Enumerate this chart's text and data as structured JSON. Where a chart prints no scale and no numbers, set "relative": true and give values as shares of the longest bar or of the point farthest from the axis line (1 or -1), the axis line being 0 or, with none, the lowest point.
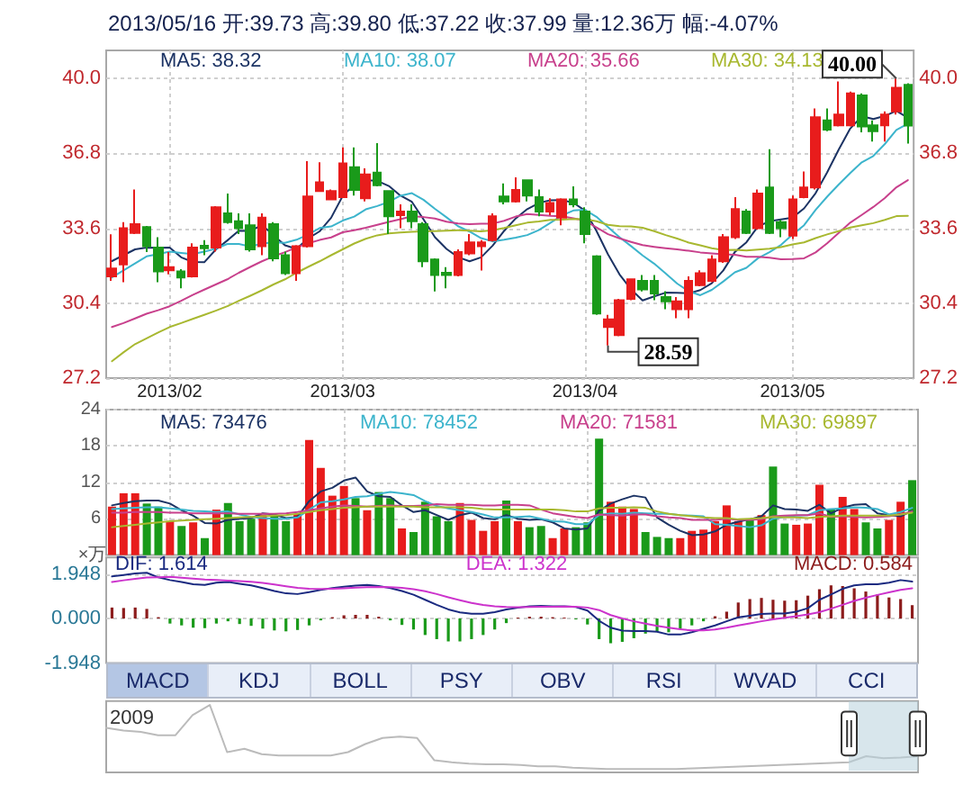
{
  "chart_data": [
    {
      "type": "candlestick",
      "title": "2013/05/16 开:39.73 高:39.80 低:37.22 收:37.99 量:12.36万 幅:-4.07%",
      "categories": [
        null,
        null,
        null,
        null,
        null,
        "2013/02",
        null,
        null,
        null,
        null,
        null,
        null,
        null,
        null,
        null,
        null,
        null,
        null,
        null,
        null,
        "2013/03",
        null,
        null,
        null,
        null,
        null,
        null,
        null,
        null,
        null,
        null,
        null,
        null,
        null,
        null,
        null,
        null,
        null,
        null,
        null,
        null,
        "2013/04",
        null,
        null,
        null,
        null,
        null,
        null,
        null,
        null,
        null,
        null,
        null,
        null,
        null,
        null,
        null,
        null,
        null,
        "2013/05",
        null,
        null,
        null,
        null,
        null,
        null,
        null,
        null,
        null,
        null
      ],
      "ohlc": [
        [
          31.55,
          33.34,
          31.35,
          31.88
        ],
        [
          32.06,
          33.86,
          31.3,
          33.6
        ],
        [
          33.4,
          35.26,
          33.35,
          33.78
        ],
        [
          33.65,
          33.7,
          32.58,
          32.83
        ],
        [
          32.78,
          33.22,
          31.3,
          31.76
        ],
        [
          31.81,
          32.58,
          31.63,
          31.94
        ],
        [
          31.76,
          31.85,
          31.04,
          31.5
        ],
        [
          31.55,
          32.96,
          31.5,
          32.78
        ],
        [
          32.85,
          33.09,
          32.45,
          32.75
        ],
        [
          32.78,
          34.55,
          32.6,
          34.5
        ],
        [
          34.24,
          35.08,
          33.8,
          33.86
        ],
        [
          33.9,
          34.24,
          33.35,
          33.6
        ],
        [
          33.73,
          34.24,
          32.6,
          32.7
        ],
        [
          32.83,
          34.24,
          32.45,
          34.06
        ],
        [
          33.78,
          33.86,
          32.19,
          32.32
        ],
        [
          32.45,
          32.6,
          31.6,
          31.68
        ],
        [
          31.68,
          32.88,
          31.35,
          32.83
        ],
        [
          32.83,
          36.47,
          32.78,
          34.96
        ],
        [
          35.19,
          36.42,
          35.15,
          35.57
        ],
        [
          34.83,
          35.26,
          34.8,
          35.19
        ],
        [
          34.93,
          37.06,
          34.9,
          36.37
        ],
        [
          36.21,
          37.06,
          35.0,
          35.24
        ],
        [
          34.88,
          36.16,
          34.75,
          35.9
        ],
        [
          35.98,
          37.24,
          35.39,
          35.44
        ],
        [
          35.19,
          35.2,
          33.35,
          34.11
        ],
        [
          34.16,
          34.62,
          33.6,
          34.32
        ],
        [
          34.32,
          34.62,
          33.6,
          33.9
        ],
        [
          33.78,
          33.86,
          31.94,
          32.19
        ],
        [
          32.27,
          32.32,
          30.9,
          31.6
        ],
        [
          31.7,
          31.94,
          31.04,
          31.6
        ],
        [
          31.6,
          32.7,
          31.55,
          32.58
        ],
        [
          32.53,
          33.35,
          32.45,
          33.0
        ],
        [
          32.83,
          33.09,
          31.8,
          33.0
        ],
        [
          33.09,
          34.24,
          33.04,
          34.11
        ],
        [
          34.96,
          35.52,
          34.62,
          34.75
        ],
        [
          34.75,
          35.78,
          34.7,
          35.24
        ],
        [
          35.65,
          35.65,
          34.75,
          35.0
        ],
        [
          34.93,
          35.26,
          34.11,
          34.32
        ],
        [
          34.32,
          34.88,
          34.16,
          34.68
        ],
        [
          34.06,
          34.88,
          33.73,
          34.83
        ],
        [
          34.83,
          35.39,
          34.5,
          34.62
        ],
        [
          34.32,
          34.5,
          32.96,
          33.35
        ],
        [
          32.4,
          32.45,
          29.9,
          29.96
        ],
        [
          29.38,
          29.9,
          28.59,
          29.71
        ],
        [
          29.04,
          30.58,
          28.99,
          30.53
        ],
        [
          30.58,
          31.42,
          30.53,
          31.42
        ],
        [
          31.35,
          31.6,
          30.9,
          30.99
        ],
        [
          31.35,
          31.6,
          30.53,
          30.82
        ],
        [
          30.66,
          30.91,
          30.14,
          30.48
        ],
        [
          30.14,
          30.66,
          29.76,
          30.48
        ],
        [
          30.14,
          31.55,
          29.76,
          31.35
        ],
        [
          31.17,
          31.81,
          31.12,
          31.68
        ],
        [
          31.35,
          32.45,
          31.3,
          32.27
        ],
        [
          32.19,
          33.35,
          32.12,
          33.22
        ],
        [
          33.22,
          34.93,
          33.14,
          34.42
        ],
        [
          34.32,
          34.42,
          33.35,
          33.4
        ],
        [
          33.6,
          35.26,
          33.55,
          35.08
        ],
        [
          35.34,
          36.98,
          33.35,
          33.4
        ],
        [
          33.86,
          33.96,
          33.22,
          33.6
        ],
        [
          33.29,
          35.0,
          33.14,
          34.83
        ],
        [
          34.93,
          36.03,
          34.88,
          35.34
        ],
        [
          35.34,
          38.72,
          35.26,
          38.34
        ],
        [
          38.21,
          38.72,
          37.75,
          37.82
        ],
        [
          38.0,
          39.87,
          37.95,
          38.46
        ],
        [
          38.0,
          39.44,
          37.95,
          39.36
        ],
        [
          39.28,
          39.36,
          37.7,
          37.95
        ],
        [
          38.0,
          38.21,
          37.31,
          37.75
        ],
        [
          38.0,
          38.59,
          37.31,
          38.46
        ],
        [
          38.59,
          40.0,
          38.46,
          39.6
        ],
        [
          39.73,
          39.8,
          37.22,
          37.99
        ]
      ],
      "colors": [
        "#e81c1c",
        "#e81c1c",
        "#e81c1c",
        "#1a9a1a",
        "#1a9a1a",
        "#e81c1c",
        "#1a9a1a",
        "#e81c1c",
        "#1a9a1a",
        "#e81c1c",
        "#1a9a1a",
        "#1a9a1a",
        "#1a9a1a",
        "#e81c1c",
        "#1a9a1a",
        "#1a9a1a",
        "#e81c1c",
        "#e81c1c",
        "#e81c1c",
        "#e81c1c",
        "#e81c1c",
        "#1a9a1a",
        "#e81c1c",
        "#1a9a1a",
        "#1a9a1a",
        "#e81c1c",
        "#1a9a1a",
        "#1a9a1a",
        "#1a9a1a",
        "#1a9a1a",
        "#e81c1c",
        "#e81c1c",
        "#e81c1c",
        "#e81c1c",
        "#1a9a1a",
        "#e81c1c",
        "#1a9a1a",
        "#1a9a1a",
        "#e81c1c",
        "#e81c1c",
        "#1a9a1a",
        "#1a9a1a",
        "#1a9a1a",
        "#e81c1c",
        "#e81c1c",
        "#e81c1c",
        "#1a9a1a",
        "#1a9a1a",
        "#1a9a1a",
        "#e81c1c",
        "#e81c1c",
        "#e81c1c",
        "#e81c1c",
        "#e81c1c",
        "#e81c1c",
        "#1a9a1a",
        "#e81c1c",
        "#1a9a1a",
        "#1a9a1a",
        "#e81c1c",
        "#e81c1c",
        "#e81c1c",
        "#1a9a1a",
        "#e81c1c",
        "#e81c1c",
        "#1a9a1a",
        "#1a9a1a",
        "#e81c1c",
        "#e81c1c",
        "#1a9a1a"
      ],
      "series": [
        {
          "type": "line",
          "name": "MA5: 38.32",
          "color": "#1c3364",
          "values": [
            32.2,
            32.45,
            32.7,
            32.78,
            32.77,
            32.78,
            32.36,
            32.16,
            32.15,
            32.69,
            33.08,
            33.5,
            33.48,
            33.74,
            33.31,
            32.87,
            32.72,
            33.17,
            33.47,
            34.05,
            34.98,
            35.47,
            35.65,
            35.63,
            35.41,
            35.0,
            34.73,
            33.99,
            33.22,
            32.72,
            32.37,
            32.19,
            32.36,
            32.86,
            33.49,
            34.02,
            34.42,
            34.68,
            34.8,
            34.81,
            34.69,
            34.36,
            33.49,
            32.49,
            31.63,
            30.99,
            30.52,
            30.69,
            30.85,
            30.84,
            30.82,
            30.96,
            31.25,
            31.8,
            32.59,
            33.0,
            33.68,
            33.9,
            33.98,
            34.06,
            34.45,
            35.1,
            35.99,
            36.96,
            37.86,
            38.39,
            38.27,
            38.4,
            38.62,
            38.32
          ]
        },
        {
          "type": "line",
          "name": "MA10: 38.07",
          "color": "#3cb4cc",
          "values": [
            31.5,
            31.8,
            32.1,
            32.4,
            32.5,
            32.6,
            32.55,
            32.5,
            32.6,
            32.73,
            32.93,
            32.93,
            32.82,
            32.95,
            33.0,
            32.98,
            33.11,
            33.33,
            33.61,
            33.68,
            33.93,
            34.1,
            34.41,
            34.55,
            34.73,
            34.99,
            35.1,
            34.82,
            34.43,
            34.07,
            33.69,
            33.46,
            33.18,
            33.04,
            33.11,
            33.2,
            33.31,
            33.52,
            33.83,
            34.15,
            34.36,
            34.39,
            34.09,
            33.65,
            33.22,
            32.84,
            32.44,
            32.09,
            31.67,
            31.24,
            30.91,
            30.74,
            30.97,
            31.33,
            31.72,
            31.91,
            32.32,
            32.58,
            32.89,
            33.33,
            33.73,
            34.39,
            34.95,
            35.47,
            35.96,
            36.42,
            36.69,
            37.2,
            37.8,
            38.07
          ]
        },
        {
          "type": "line",
          "name": "MA20: 35.66",
          "color": "#c8408c",
          "values": [
            29.38,
            29.55,
            29.75,
            29.95,
            30.1,
            30.27,
            30.5,
            30.75,
            30.98,
            31.2,
            31.42,
            31.7,
            31.95,
            32.19,
            32.4,
            32.58,
            32.78,
            32.96,
            33.1,
            33.21,
            33.43,
            33.52,
            33.62,
            33.75,
            33.87,
            33.99,
            34.11,
            34.08,
            34.02,
            33.88,
            33.81,
            33.78,
            33.8,
            33.8,
            33.92,
            34.1,
            34.21,
            34.17,
            34.13,
            34.11,
            34.03,
            33.93,
            33.64,
            33.35,
            33.17,
            33.02,
            32.88,
            32.81,
            32.75,
            32.7,
            32.64,
            32.57,
            32.53,
            32.49,
            32.47,
            32.38,
            32.38,
            32.34,
            32.28,
            32.29,
            32.32,
            32.57,
            32.96,
            33.4,
            33.84,
            34.17,
            34.51,
            34.89,
            35.35,
            35.66
          ]
        },
        {
          "type": "line",
          "name": "MA30: 34.13",
          "color": "#a8b830",
          "values": [
            27.92,
            28.3,
            28.65,
            28.9,
            29.15,
            29.38,
            29.55,
            29.73,
            29.9,
            30.08,
            30.27,
            30.5,
            30.72,
            30.95,
            31.2,
            31.42,
            31.7,
            31.95,
            32.19,
            32.45,
            32.7,
            32.95,
            33.15,
            33.3,
            33.38,
            33.42,
            33.45,
            33.47,
            33.48,
            33.5,
            33.52,
            33.5,
            33.47,
            33.52,
            33.61,
            33.73,
            33.84,
            33.89,
            33.96,
            33.97,
            34.0,
            33.99,
            33.9,
            33.75,
            33.69,
            33.68,
            33.62,
            33.48,
            33.31,
            33.16,
            32.99,
            32.87,
            32.75,
            32.67,
            32.68,
            32.65,
            32.69,
            32.73,
            32.8,
            32.91,
            33.0,
            33.18,
            33.34,
            33.48,
            33.63,
            33.73,
            33.82,
            33.96,
            34.12,
            34.13
          ]
        }
      ],
      "ylim": [
        27.2,
        41.2
      ],
      "yticks": [
        {
          "value": 40,
          "label": "40.0"
        },
        36.8,
        33.6,
        30.4,
        27.2
      ],
      "y2lim": [
        27.2,
        41.2
      ],
      "y2ticks": [
        {
          "value": 40,
          "label": "40.0"
        },
        36.8,
        33.6,
        30.4,
        27.2
      ],
      "grid": true,
      "legend": "top",
      "annotations": [
        "28.59",
        "40.00"
      ]
    },
    {
      "type": "bar",
      "ylabel": "×万",
      "categories": [
        null,
        null,
        null,
        null,
        null,
        "2013/02",
        null,
        null,
        null,
        null,
        null,
        null,
        null,
        null,
        null,
        null,
        null,
        null,
        null,
        null,
        "2013/03",
        null,
        null,
        null,
        null,
        null,
        null,
        null,
        null,
        null,
        null,
        null,
        null,
        null,
        null,
        null,
        null,
        null,
        null,
        null,
        null,
        "2013/04",
        null,
        null,
        null,
        null,
        null,
        null,
        null,
        null,
        null,
        null,
        null,
        null,
        null,
        null,
        null,
        null,
        null,
        "2013/05",
        null,
        null,
        null,
        null,
        null,
        null,
        null,
        null,
        null,
        null
      ],
      "series": [
        {
          "type": "bar",
          "values": [
            8,
            10.2,
            10.2,
            8.5,
            8,
            5.6,
            4.8,
            5.4,
            2.8,
            7.5,
            8.6,
            5.6,
            6,
            6.6,
            6.6,
            5.6,
            6.8,
            19,
            14.4,
            9.8,
            11.4,
            9.4,
            7.4,
            10.4,
            9.4,
            4.4,
            3.8,
            8.8,
            6.4,
            5.6,
            8.6,
            5.8,
            4,
            5.6,
            9,
            5.6,
            4.6,
            4.8,
            2.8,
            4.4,
            4.6,
            5.4,
            19.2,
            8.8,
            8,
            7.6,
            3.8,
            3,
            2.8,
            2.8,
            4,
            4.2,
            5.6,
            8.2,
            5.6,
            6,
            6.6,
            14.6,
            5.2,
            5,
            5.2,
            11.6,
            7.6,
            9.6,
            7.6,
            5.4,
            4.4,
            5.8,
            8.8,
            12.36
          ],
          "colors": [
            "#e81c1c",
            "#e81c1c",
            "#e81c1c",
            "#1a9a1a",
            "#1a9a1a",
            "#e81c1c",
            "#1a9a1a",
            "#e81c1c",
            "#1a9a1a",
            "#e81c1c",
            "#1a9a1a",
            "#1a9a1a",
            "#1a9a1a",
            "#e81c1c",
            "#1a9a1a",
            "#1a9a1a",
            "#e81c1c",
            "#e81c1c",
            "#e81c1c",
            "#e81c1c",
            "#e81c1c",
            "#1a9a1a",
            "#e81c1c",
            "#1a9a1a",
            "#1a9a1a",
            "#e81c1c",
            "#1a9a1a",
            "#1a9a1a",
            "#1a9a1a",
            "#1a9a1a",
            "#e81c1c",
            "#e81c1c",
            "#e81c1c",
            "#e81c1c",
            "#1a9a1a",
            "#e81c1c",
            "#1a9a1a",
            "#1a9a1a",
            "#e81c1c",
            "#e81c1c",
            "#1a9a1a",
            "#1a9a1a",
            "#1a9a1a",
            "#e81c1c",
            "#e81c1c",
            "#e81c1c",
            "#1a9a1a",
            "#1a9a1a",
            "#1a9a1a",
            "#e81c1c",
            "#e81c1c",
            "#e81c1c",
            "#e81c1c",
            "#e81c1c",
            "#e81c1c",
            "#1a9a1a",
            "#e81c1c",
            "#1a9a1a",
            "#1a9a1a",
            "#e81c1c",
            "#e81c1c",
            "#e81c1c",
            "#1a9a1a",
            "#e81c1c",
            "#e81c1c",
            "#1a9a1a",
            "#1a9a1a",
            "#e81c1c",
            "#e81c1c",
            "#1a9a1a"
          ]
        },
        {
          "type": "line",
          "name": "MA5: 73476",
          "color": "#1c3364",
          "values": [
            8.2,
            8.6,
            8.9,
            9.0,
            9.0,
            8.5,
            7.4,
            6.5,
            5.3,
            5.2,
            5.8,
            6.0,
            6.1,
            6.9,
            6.7,
            6.1,
            6.3,
            8.9,
            10.5,
            11.1,
            12.3,
            12.8,
            10.5,
            9.7,
            9.6,
            8.2,
            7.1,
            7.4,
            6.6,
            5.8,
            6.6,
            7.0,
            6.1,
            5.9,
            6.6,
            6.0,
            5.8,
            5.9,
            5.4,
            4.4,
            4.2,
            4.4,
            7.3,
            8.5,
            9.2,
            9.8,
            9.5,
            6.2,
            5.0,
            4.0,
            3.3,
            3.4,
            3.9,
            5.0,
            5.5,
            5.9,
            6.4,
            8.2,
            7.6,
            7.5,
            7.3,
            8.3,
            6.9,
            7.8,
            8.3,
            8.4,
            6.9,
            6.6,
            6.4,
            7.3
          ]
        },
        {
          "type": "line",
          "name": "MA10: 78452",
          "color": "#3cb4cc",
          "values": [
            7.6,
            7.7,
            7.8,
            7.9,
            7.9,
            7.7,
            7.5,
            7.3,
            7.2,
            7.1,
            7.2,
            6.7,
            6.3,
            6.1,
            6.0,
            6.0,
            6.2,
            7.5,
            8.7,
            8.9,
            9.2,
            9.6,
            9.7,
            10.1,
            10.4,
            10.2,
            9.9,
            8.9,
            8.1,
            7.7,
            7.4,
            7.1,
            6.7,
            6.2,
            6.2,
            6.3,
            6.4,
            6.0,
            5.6,
            5.5,
            5.1,
            5.1,
            6.6,
            6.9,
            6.8,
            7.0,
            6.9,
            6.8,
            6.8,
            6.6,
            6.5,
            6.4,
            5.1,
            5.0,
            4.8,
            4.6,
            4.9,
            6.0,
            6.3,
            6.5,
            6.6,
            7.4,
            7.6,
            7.7,
            7.9,
            7.8,
            7.6,
            6.7,
            7.1,
            7.8
          ]
        },
        {
          "type": "line",
          "name": "MA20: 71581",
          "color": "#c8408c",
          "values": [
            7.0,
            7.0,
            7.1,
            7.1,
            7.1,
            7.0,
            7.0,
            6.9,
            6.9,
            6.9,
            6.9,
            6.8,
            6.8,
            6.8,
            6.8,
            6.9,
            7.1,
            7.4,
            7.7,
            8.0,
            8.2,
            8.1,
            8.0,
            8.1,
            8.2,
            8.1,
            8.1,
            8.2,
            8.4,
            8.3,
            8.3,
            8.3,
            8.2,
            8.2,
            8.3,
            8.3,
            8.2,
            7.5,
            6.9,
            6.6,
            6.3,
            6.1,
            6.7,
            6.6,
            6.5,
            6.7,
            6.7,
            6.4,
            6.2,
            6.1,
            5.8,
            5.8,
            5.8,
            6.0,
            5.8,
            5.8,
            5.9,
            6.4,
            6.5,
            6.6,
            6.6,
            6.9,
            6.3,
            6.4,
            6.3,
            6.2,
            6.3,
            6.4,
            6.7,
            7.2
          ]
        },
        {
          "type": "line",
          "name": "MA30: 69897",
          "color": "#a8b830",
          "values": [
            4.6,
            4.8,
            5.0,
            5.2,
            5.4,
            5.6,
            5.7,
            5.8,
            5.9,
            6.0,
            6.1,
            6.2,
            6.3,
            6.4,
            6.5,
            6.6,
            6.8,
            7.1,
            7.4,
            7.6,
            7.8,
            7.9,
            8.0,
            8.0,
            8.0,
            8.0,
            8.0,
            7.9,
            7.9,
            7.9,
            7.9,
            7.8,
            7.6,
            7.5,
            7.5,
            7.5,
            7.5,
            7.5,
            7.5,
            7.4,
            7.2,
            7.2,
            7.7,
            7.8,
            7.8,
            7.9,
            7.8,
            7.2,
            6.8,
            6.6,
            6.4,
            6.2,
            6.1,
            6.1,
            5.9,
            6.0,
            6.1,
            6.3,
            6.2,
            6.2,
            6.1,
            6.3,
            6.4,
            6.5,
            6.5,
            6.5,
            6.5,
            6.5,
            6.7,
            7.0
          ]
        }
      ],
      "ylim": [
        0,
        24
      ],
      "yticks": [
        6,
        12,
        18,
        24
      ],
      "grid": true,
      "legend": "top",
      "tick_labels": "y"
    },
    {
      "type": "bar",
      "categories": [
        null,
        null,
        null,
        null,
        null,
        "2013/02",
        null,
        null,
        null,
        null,
        null,
        null,
        null,
        null,
        null,
        null,
        null,
        null,
        null,
        null,
        "2013/03",
        null,
        null,
        null,
        null,
        null,
        null,
        null,
        null,
        null,
        null,
        null,
        null,
        null,
        null,
        null,
        null,
        null,
        null,
        null,
        null,
        "2013/04",
        null,
        null,
        null,
        null,
        null,
        null,
        null,
        null,
        null,
        null,
        null,
        null,
        null,
        null,
        null,
        null,
        null,
        "2013/05",
        null,
        null,
        null,
        null,
        null,
        null,
        null,
        null,
        null,
        null
      ],
      "series": [
        {
          "type": "line",
          "name": "DIF: 1.614",
          "color": "#1a2a80",
          "values": [
            1.84,
            1.9,
            1.97,
            2.0,
            1.8,
            1.68,
            1.6,
            1.5,
            1.47,
            1.57,
            1.6,
            1.52,
            1.45,
            1.33,
            1.2,
            1.1,
            1.07,
            1.15,
            1.25,
            1.33,
            1.39,
            1.44,
            1.47,
            1.42,
            1.33,
            1.2,
            1.04,
            0.82,
            0.6,
            0.4,
            0.27,
            0.21,
            0.21,
            0.28,
            0.4,
            0.47,
            0.53,
            0.55,
            0.53,
            0.53,
            0.5,
            0.35,
            -0.1,
            -0.4,
            -0.53,
            -0.55,
            -0.55,
            -0.58,
            -0.7,
            -0.7,
            -0.6,
            -0.45,
            -0.3,
            -0.12,
            0.05,
            0.12,
            0.2,
            0.22,
            0.22,
            0.3,
            0.45,
            0.82,
            1.05,
            1.3,
            1.45,
            1.5,
            1.5,
            1.57,
            1.68,
            1.614
          ]
        },
        {
          "type": "line",
          "name": "DEA: 1.322",
          "color": "#cc33cc",
          "values": [
            1.6,
            1.67,
            1.73,
            1.79,
            1.8,
            1.82,
            1.78,
            1.74,
            1.7,
            1.68,
            1.66,
            1.64,
            1.61,
            1.56,
            1.49,
            1.41,
            1.34,
            1.3,
            1.29,
            1.3,
            1.32,
            1.35,
            1.37,
            1.38,
            1.37,
            1.34,
            1.28,
            1.19,
            1.07,
            0.93,
            0.8,
            0.68,
            0.59,
            0.53,
            0.5,
            0.49,
            0.5,
            0.51,
            0.51,
            0.52,
            0.51,
            0.48,
            0.37,
            0.15,
            0.0,
            -0.12,
            -0.22,
            -0.32,
            -0.4,
            -0.47,
            -0.52,
            -0.52,
            -0.48,
            -0.4,
            -0.3,
            -0.21,
            -0.12,
            -0.04,
            0.03,
            0.1,
            0.18,
            0.28,
            0.43,
            0.6,
            0.77,
            0.91,
            1.03,
            1.14,
            1.25,
            1.322
          ]
        },
        {
          "type": "bar",
          "name": "MACD: 0.584",
          "color": "#8c1c1c",
          "values": [
            0.48,
            0.46,
            0.48,
            0.42,
            0.06,
            -0.22,
            -0.3,
            -0.4,
            -0.42,
            -0.22,
            -0.12,
            -0.24,
            -0.32,
            -0.44,
            -0.52,
            -0.56,
            -0.5,
            -0.3,
            -0.08,
            0.06,
            0.14,
            0.16,
            0.16,
            0.08,
            -0.08,
            -0.28,
            -0.48,
            -0.72,
            -0.9,
            -1.0,
            -1.0,
            -0.9,
            -0.72,
            -0.48,
            -0.2,
            0.04,
            0.08,
            0.08,
            0.06,
            0.04,
            -0.04,
            -0.26,
            -0.9,
            -1.08,
            -1.02,
            -0.86,
            -0.66,
            -0.56,
            -0.6,
            -0.46,
            -0.3,
            -0.12,
            0.1,
            0.3,
            0.7,
            0.85,
            0.9,
            0.82,
            0.78,
            0.8,
            1.0,
            1.28,
            1.45,
            1.42,
            1.32,
            1.18,
            1.05,
            0.92,
            0.85,
            0.584
          ],
          "colors": [
            "#8c1c1c",
            "#8c1c1c",
            "#8c1c1c",
            "#8c1c1c",
            "#8c1c1c",
            "#1a9a1a",
            "#1a9a1a",
            "#1a9a1a",
            "#1a9a1a",
            "#1a9a1a",
            "#1a9a1a",
            "#1a9a1a",
            "#1a9a1a",
            "#1a9a1a",
            "#1a9a1a",
            "#1a9a1a",
            "#1a9a1a",
            "#1a9a1a",
            "#1a9a1a",
            "#8c1c1c",
            "#8c1c1c",
            "#8c1c1c",
            "#8c1c1c",
            "#8c1c1c",
            "#1a9a1a",
            "#1a9a1a",
            "#1a9a1a",
            "#1a9a1a",
            "#1a9a1a",
            "#1a9a1a",
            "#1a9a1a",
            "#1a9a1a",
            "#1a9a1a",
            "#1a9a1a",
            "#1a9a1a",
            "#8c1c1c",
            "#8c1c1c",
            "#8c1c1c",
            "#8c1c1c",
            "#8c1c1c",
            "#1a9a1a",
            "#1a9a1a",
            "#1a9a1a",
            "#1a9a1a",
            "#1a9a1a",
            "#1a9a1a",
            "#1a9a1a",
            "#1a9a1a",
            "#1a9a1a",
            "#1a9a1a",
            "#1a9a1a",
            "#1a9a1a",
            "#8c1c1c",
            "#8c1c1c",
            "#8c1c1c",
            "#8c1c1c",
            "#8c1c1c",
            "#8c1c1c",
            "#8c1c1c",
            "#8c1c1c",
            "#8c1c1c",
            "#8c1c1c",
            "#8c1c1c",
            "#8c1c1c",
            "#8c1c1c",
            "#8c1c1c",
            "#8c1c1c",
            "#8c1c1c",
            "#8c1c1c",
            "#8c1c1c"
          ]
        }
      ],
      "ylim": [
        -1.948,
        2.67
      ],
      "yticks": [
        -1.948,
        {
          "value": 0,
          "label": "0.000"
        },
        1.948
      ],
      "grid": "y",
      "legend": "top",
      "tick_labels": "y"
    },
    {
      "type": "other",
      "annotations": [
        "MACD",
        "KDJ",
        "BOLL",
        "PSY",
        "OBV",
        "RSI",
        "WVAD",
        "CCI"
      ]
    },
    {
      "type": "line",
      "relative": true,
      "categories": [
        null,
        null,
        null,
        null,
        null,
        null,
        null,
        null,
        null,
        null,
        null,
        null,
        null,
        null,
        null,
        null,
        null,
        null,
        null,
        null,
        null,
        null,
        null,
        null,
        null,
        null,
        null,
        null,
        null,
        null,
        null,
        null,
        null,
        null,
        null,
        null,
        null,
        null,
        null,
        null,
        null,
        null,
        null,
        null,
        null,
        null,
        null,
        null
      ],
      "values": [
        0.66,
        0.62,
        0.6,
        0.55,
        0.55,
        0.85,
        1,
        0.3,
        0.35,
        0.27,
        0.25,
        0.25,
        0.25,
        0.25,
        0.3,
        0.42,
        0.51,
        0.53,
        0.51,
        0.18,
        0.15,
        0.13,
        0.12,
        0.12,
        0.11,
        0.09,
        0.09,
        0.07,
        0.06,
        0.05,
        0.05,
        0.05,
        0.05,
        0.05,
        0.06,
        0.07,
        0.08,
        0.09,
        0.1,
        0.11,
        0.12,
        0.13,
        0.14,
        0.15,
        0.24,
        0.21,
        0.22,
        0.24
      ],
      "color": "#bbbbbb",
      "tick_labels": false,
      "grid": true,
      "annotations": [
        "2009"
      ]
    }
  ]
}
